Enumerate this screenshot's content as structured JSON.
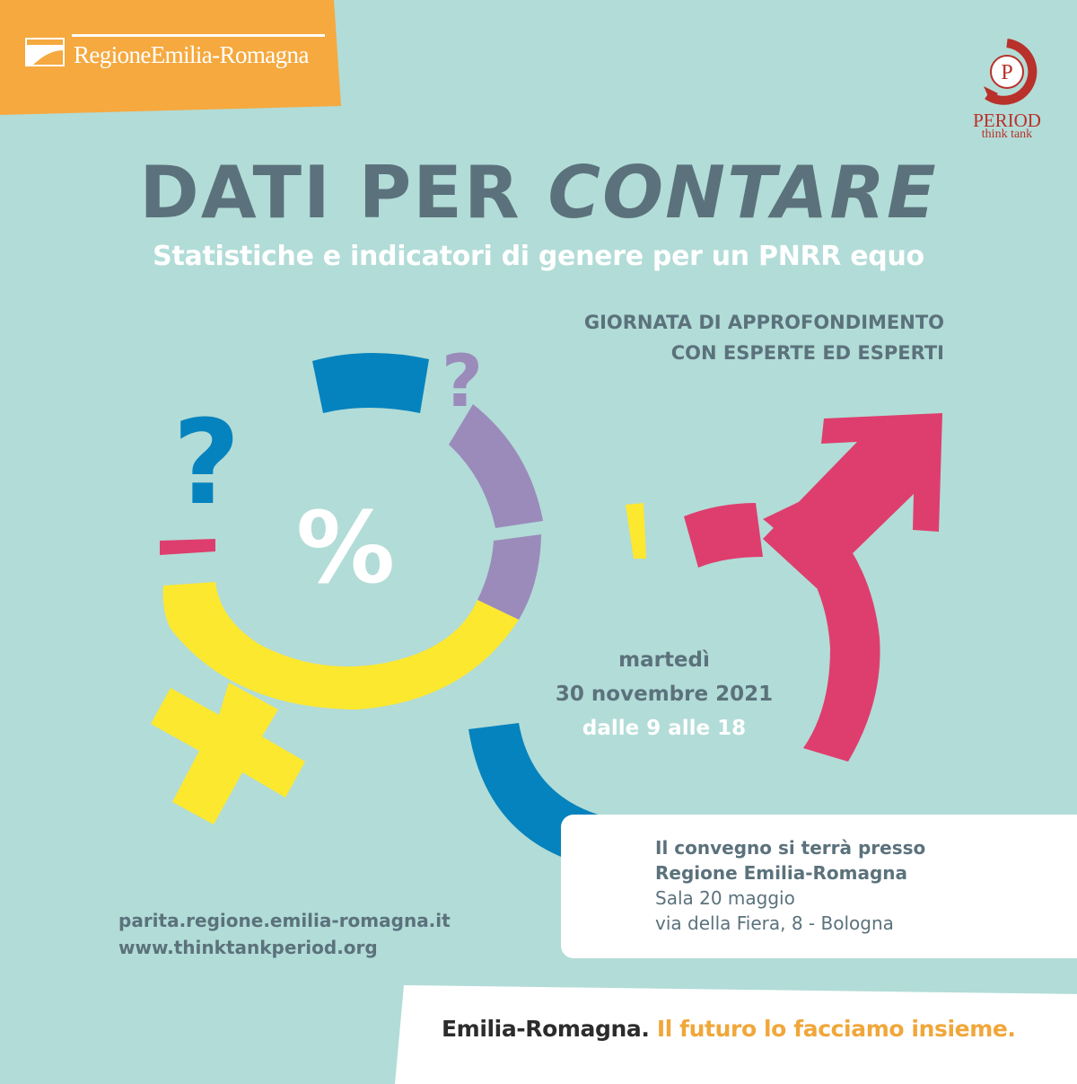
{
  "colors": {
    "background": "#b2dcd7",
    "orange": "#f5a93f",
    "slate": "#5b727c",
    "blue": "#0583be",
    "purple": "#9b8bbb",
    "yellow": "#fce82f",
    "pink": "#de3e6e",
    "period_red": "#b8312a",
    "white": "#ffffff"
  },
  "header": {
    "region_logo_text": "RegioneEmilia-Romagna",
    "period_logo_name": "PERIOD",
    "period_logo_sub": "think tank",
    "period_logo_letter": "P"
  },
  "title": {
    "part1": "DATI PER",
    "part2": "CONTARE"
  },
  "subtitle": "Statistiche e indicatori di genere per un PNRR equo",
  "event_type": {
    "line1": "GIORNATA DI APPROFONDIMENTO",
    "line2": "CON ESPERTE ED ESPERTI"
  },
  "graphic": {
    "percent": "%",
    "question_mark": "?"
  },
  "date": {
    "day": "martedì",
    "date": "30 novembre 2021",
    "time": "dalle 9 alle 18"
  },
  "venue": {
    "line1": "Il convegno si terrà presso",
    "line2": "Regione Emilia-Romagna",
    "line3": "Sala 20 maggio",
    "line4": "via della Fiera, 8 - Bologna"
  },
  "links": {
    "link1": "parita.regione.emilia-romagna.it",
    "link2": "www.thinktankperiod.org"
  },
  "slogan": {
    "part1": "Emilia-Romagna.",
    "part2": "Il futuro lo facciamo insieme."
  }
}
